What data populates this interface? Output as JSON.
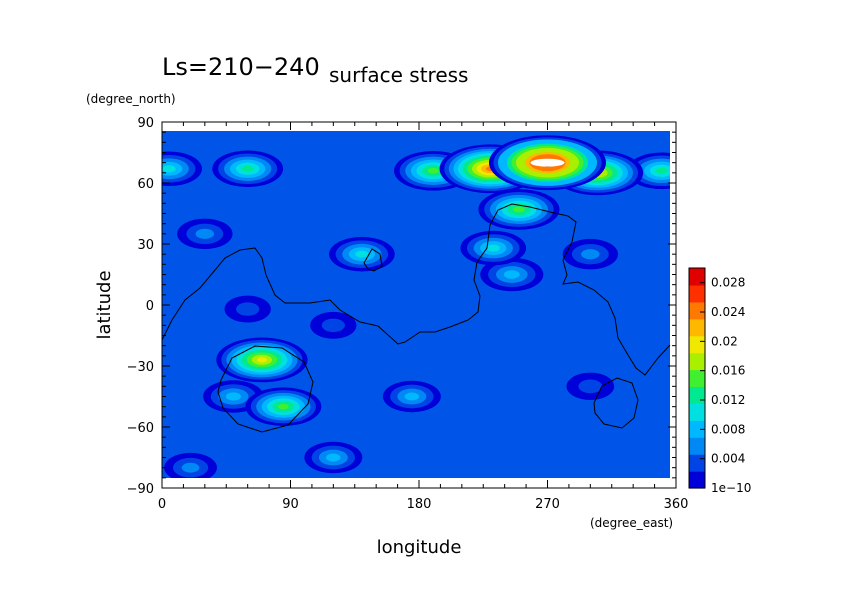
{
  "chart_data": {
    "type": "heatmap",
    "title": "Ls=210−240",
    "subtitle": "surface stress",
    "xlabel": "longitude",
    "ylabel": "latitude",
    "xunit": "(degree_east)",
    "yunit": "(degree_north)",
    "xlim": [
      0,
      360
    ],
    "ylim": [
      -90,
      90
    ],
    "x_ticks": [
      0,
      90,
      180,
      270,
      360
    ],
    "y_ticks": [
      -90,
      -60,
      -30,
      0,
      30,
      60,
      90
    ],
    "x_tick_labels": [
      "0",
      "90",
      "180",
      "270",
      "360"
    ],
    "y_tick_labels": [
      "−90",
      "−60",
      "−30",
      "0",
      "30",
      "60",
      "90"
    ],
    "colorbar": {
      "range": [
        0,
        0.03
      ],
      "tick_values": [
        0,
        0.004,
        0.008,
        0.012,
        0.016,
        0.02,
        0.024,
        0.028
      ],
      "tick_labels": [
        "1e−10",
        "0.004",
        "0.008",
        "0.012",
        "0.016",
        "0.02",
        "0.024",
        "0.028"
      ],
      "colors": [
        "#0000d8",
        "#0044e6",
        "#0088f4",
        "#00b8ff",
        "#00e0e0",
        "#00e890",
        "#40f030",
        "#a8f000",
        "#f0e800",
        "#ffb800",
        "#ff7800",
        "#ff3000",
        "#e00000"
      ]
    },
    "field_description": "surface stress magnitude on a longitude-latitude grid",
    "features": [
      {
        "lon": 270,
        "lat": 70,
        "value": 0.03
      },
      {
        "lon": 230,
        "lat": 67,
        "value": 0.024
      },
      {
        "lon": 305,
        "lat": 65,
        "value": 0.02
      },
      {
        "lon": 190,
        "lat": 66,
        "value": 0.015
      },
      {
        "lon": 60,
        "lat": 67,
        "value": 0.012
      },
      {
        "lon": 5,
        "lat": 67,
        "value": 0.01
      },
      {
        "lon": 350,
        "lat": 66,
        "value": 0.012
      },
      {
        "lon": 250,
        "lat": 47,
        "value": 0.016
      },
      {
        "lon": 232,
        "lat": 28,
        "value": 0.01
      },
      {
        "lon": 245,
        "lat": 15,
        "value": 0.009
      },
      {
        "lon": 140,
        "lat": 25,
        "value": 0.01
      },
      {
        "lon": 70,
        "lat": -27,
        "value": 0.02
      },
      {
        "lon": 85,
        "lat": -50,
        "value": 0.014
      },
      {
        "lon": 50,
        "lat": -45,
        "value": 0.008
      },
      {
        "lon": 175,
        "lat": -45,
        "value": 0.007
      },
      {
        "lon": 120,
        "lat": -75,
        "value": 0.007
      },
      {
        "lon": 60,
        "lat": -2,
        "value": 0.0025
      },
      {
        "lon": 120,
        "lat": -10,
        "value": 0.0025
      },
      {
        "lon": 300,
        "lat": -40,
        "value": 0.003
      },
      {
        "lon": 20,
        "lat": -80,
        "value": 0.005
      },
      {
        "lon": 300,
        "lat": 25,
        "value": 0.006
      },
      {
        "lon": 30,
        "lat": 35,
        "value": 0.006
      }
    ]
  }
}
